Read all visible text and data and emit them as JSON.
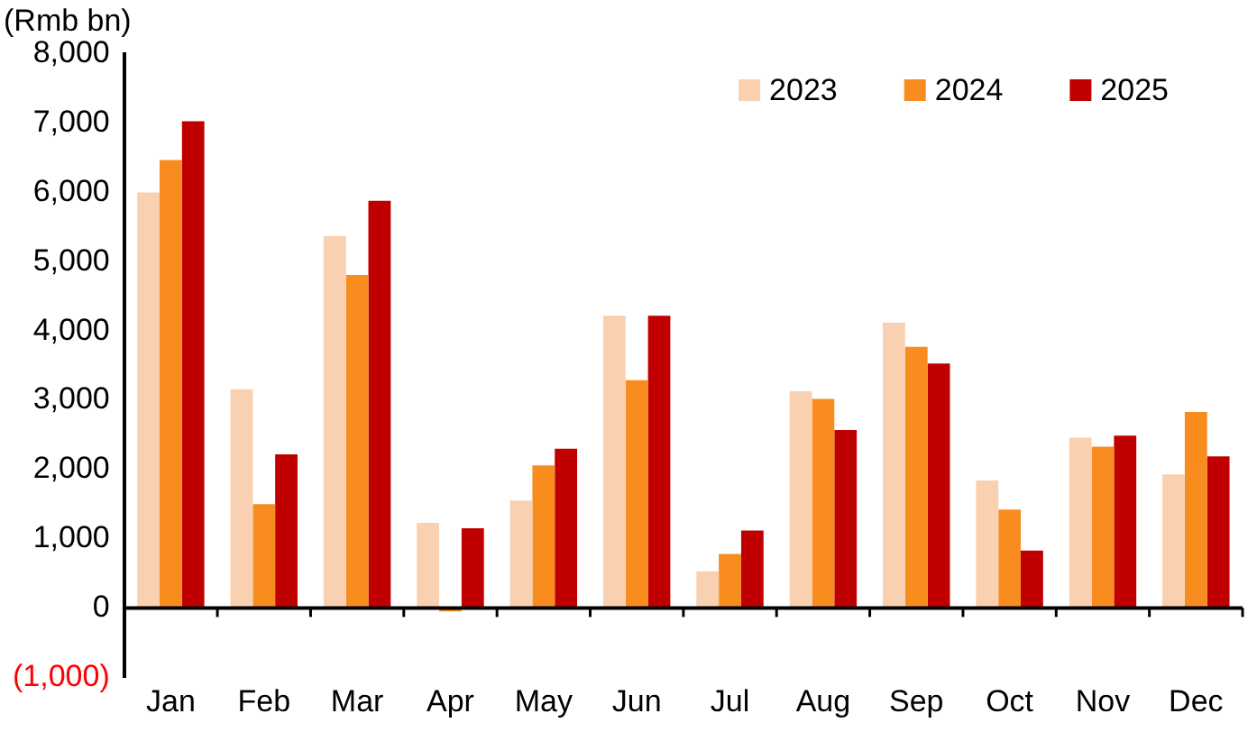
{
  "chart_data": {
    "type": "bar",
    "ylabel": "(Rmb bn)",
    "categories": [
      "Jan",
      "Feb",
      "Mar",
      "Apr",
      "May",
      "Jun",
      "Jul",
      "Aug",
      "Sep",
      "Oct",
      "Nov",
      "Dec"
    ],
    "series": [
      {
        "name": "2023",
        "color": "#f9d0b0",
        "values": [
          6000,
          3160,
          5370,
          1230,
          1550,
          4220,
          530,
          3130,
          4120,
          1840,
          2460,
          1930
        ]
      },
      {
        "name": "2024",
        "color": "#f98c1f",
        "values": [
          6470,
          1500,
          4810,
          -50,
          2060,
          3290,
          780,
          3020,
          3770,
          1420,
          2330,
          2830
        ]
      },
      {
        "name": "2025",
        "color": "#c00000",
        "values": [
          7030,
          2220,
          5880,
          1150,
          2300,
          4220,
          1120,
          2570,
          3530,
          830,
          2490,
          2190
        ]
      }
    ],
    "ylim": [
      -1000,
      8000
    ],
    "yticks": [
      {
        "value": -1000,
        "label": "(1,000)"
      },
      {
        "value": 0,
        "label": "0"
      },
      {
        "value": 1000,
        "label": "1,000"
      },
      {
        "value": 2000,
        "label": "2,000"
      },
      {
        "value": 3000,
        "label": "3,000"
      },
      {
        "value": 4000,
        "label": "4,000"
      },
      {
        "value": 5000,
        "label": "5,000"
      },
      {
        "value": 6000,
        "label": "6,000"
      },
      {
        "value": 7000,
        "label": "7,000"
      },
      {
        "value": 8000,
        "label": "8,000"
      }
    ],
    "grid": false,
    "legend": "top right"
  }
}
